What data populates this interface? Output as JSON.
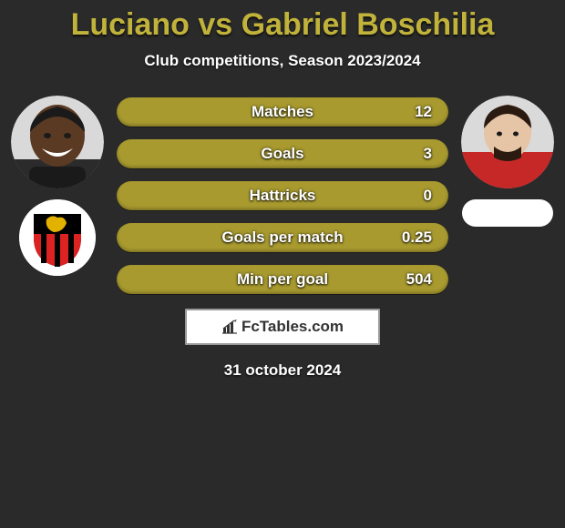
{
  "title_color": "#c0b23a",
  "bar_color": "#a89a2f",
  "background_color": "#2a2a2a",
  "title": "Luciano vs Gabriel Boschilia",
  "subtitle": "Club competitions, Season 2023/2024",
  "stats": [
    {
      "label": "Matches",
      "value": "12"
    },
    {
      "label": "Goals",
      "value": "3"
    },
    {
      "label": "Hattricks",
      "value": "0"
    },
    {
      "label": "Goals per match",
      "value": "0.25"
    },
    {
      "label": "Min per goal",
      "value": "504"
    }
  ],
  "footer_brand": "FcTables.com",
  "date": "31 october 2024",
  "left": {
    "avatar_bg": "#3a2a1a",
    "crest_ring": "#ffffff",
    "crest_stripes": [
      "#000000",
      "#d22020"
    ],
    "crest_accent": "#e3b100"
  },
  "right": {
    "avatar_bg": "#c62828",
    "crest_blank_bg": "#ffffff"
  }
}
